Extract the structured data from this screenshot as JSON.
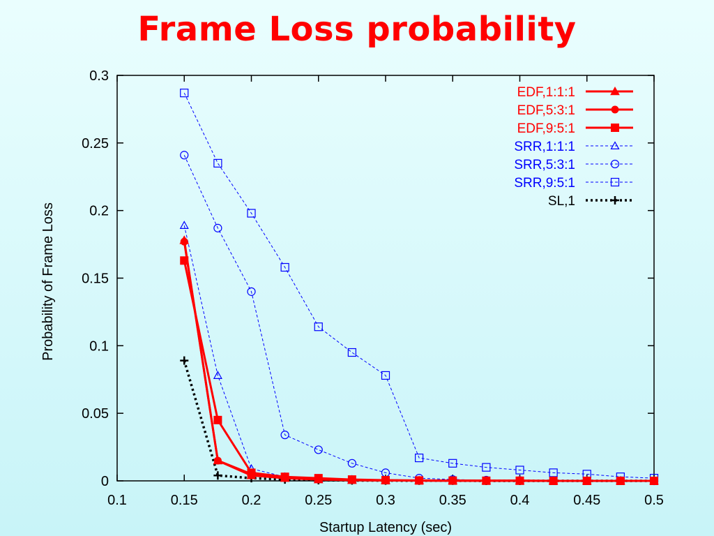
{
  "slide": {
    "title": "Frame Loss probability"
  },
  "chart_data": {
    "type": "line",
    "xlabel": "Startup Latency (sec)",
    "ylabel": "Probability of Frame Loss",
    "xlim": [
      0.1,
      0.5
    ],
    "ylim": [
      0,
      0.3
    ],
    "xticks": [
      "0.1",
      "0.15",
      "0.2",
      "0.25",
      "0.3",
      "0.35",
      "0.4",
      "0.45",
      "0.5"
    ],
    "yticks": [
      "0",
      "0.05",
      "0.1",
      "0.15",
      "0.2",
      "0.25",
      "0.3"
    ],
    "legend_position": "top-right",
    "grid": false,
    "series": [
      {
        "name": "EDF,1:1:1",
        "color": "#ff0000",
        "style": "solid",
        "marker": "triangle-filled",
        "x": [
          0.15,
          0.175,
          0.2,
          0.225,
          0.25,
          0.275,
          0.3,
          0.325,
          0.35,
          0.375,
          0.4,
          0.425,
          0.45,
          0.475,
          0.5
        ],
        "y": [
          0.178,
          0.015,
          0.004,
          0.002,
          0.001,
          0.0005,
          0.0003,
          0.0002,
          0.0001,
          0.0001,
          0.0001,
          0,
          0,
          0,
          0
        ]
      },
      {
        "name": "EDF,5:3:1",
        "color": "#ff0000",
        "style": "solid",
        "marker": "circle-filled",
        "x": [
          0.15,
          0.175,
          0.2,
          0.225,
          0.25,
          0.275,
          0.3,
          0.325,
          0.35,
          0.375,
          0.4,
          0.425,
          0.45,
          0.475,
          0.5
        ],
        "y": [
          0.177,
          0.015,
          0.005,
          0.002,
          0.001,
          0.0005,
          0.0003,
          0.0002,
          0.0001,
          0.0001,
          0.0001,
          0,
          0,
          0,
          0
        ]
      },
      {
        "name": "EDF,9:5:1",
        "color": "#ff0000",
        "style": "solid",
        "marker": "square-filled",
        "x": [
          0.15,
          0.175,
          0.2,
          0.225,
          0.25,
          0.275,
          0.3,
          0.325,
          0.35,
          0.375,
          0.4,
          0.425,
          0.45,
          0.475,
          0.5
        ],
        "y": [
          0.163,
          0.045,
          0.006,
          0.003,
          0.002,
          0.001,
          0.0005,
          0.0003,
          0.0002,
          0.0001,
          0.0001,
          0,
          0,
          0,
          0
        ]
      },
      {
        "name": "SRR,1:1:1",
        "color": "#0000ff",
        "style": "dashed",
        "marker": "triangle-open",
        "x": [
          0.15,
          0.175,
          0.2,
          0.225,
          0.25,
          0.275,
          0.3,
          0.325,
          0.35,
          0.375,
          0.4,
          0.425,
          0.45,
          0.475,
          0.5
        ],
        "y": [
          0.189,
          0.078,
          0.009,
          0.003,
          0.0015,
          0.001,
          0.0005,
          0.0003,
          0.0002,
          0.0001,
          0.0001,
          0,
          0,
          0,
          0
        ]
      },
      {
        "name": "SRR,5:3:1",
        "color": "#0000ff",
        "style": "dashed",
        "marker": "circle-open",
        "x": [
          0.15,
          0.175,
          0.2,
          0.225,
          0.25,
          0.275,
          0.3,
          0.325,
          0.35,
          0.375,
          0.4,
          0.425,
          0.45,
          0.475,
          0.5
        ],
        "y": [
          0.241,
          0.187,
          0.14,
          0.034,
          0.023,
          0.013,
          0.006,
          0.002,
          0.001,
          0.0005,
          0.0003,
          0.0002,
          0.0001,
          0.0001,
          0
        ]
      },
      {
        "name": "SRR,9:5:1",
        "color": "#0000ff",
        "style": "dashed",
        "marker": "square-open",
        "x": [
          0.15,
          0.175,
          0.2,
          0.225,
          0.25,
          0.275,
          0.3,
          0.325,
          0.35,
          0.375,
          0.4,
          0.425,
          0.45,
          0.475,
          0.5
        ],
        "y": [
          0.287,
          0.235,
          0.198,
          0.158,
          0.114,
          0.095,
          0.078,
          0.017,
          0.013,
          0.01,
          0.008,
          0.006,
          0.005,
          0.003,
          0.002
        ]
      },
      {
        "name": "SL,1",
        "color": "#000000",
        "style": "dotted",
        "marker": "plus",
        "x": [
          0.15,
          0.175,
          0.2,
          0.225,
          0.25,
          0.275,
          0.3,
          0.325,
          0.35,
          0.375,
          0.4,
          0.425,
          0.45,
          0.475,
          0.5
        ],
        "y": [
          0.089,
          0.004,
          0.002,
          0.001,
          0.0005,
          0.0003,
          0.0002,
          0.0001,
          0.0001,
          0,
          0,
          0,
          0,
          0,
          0
        ]
      }
    ]
  }
}
